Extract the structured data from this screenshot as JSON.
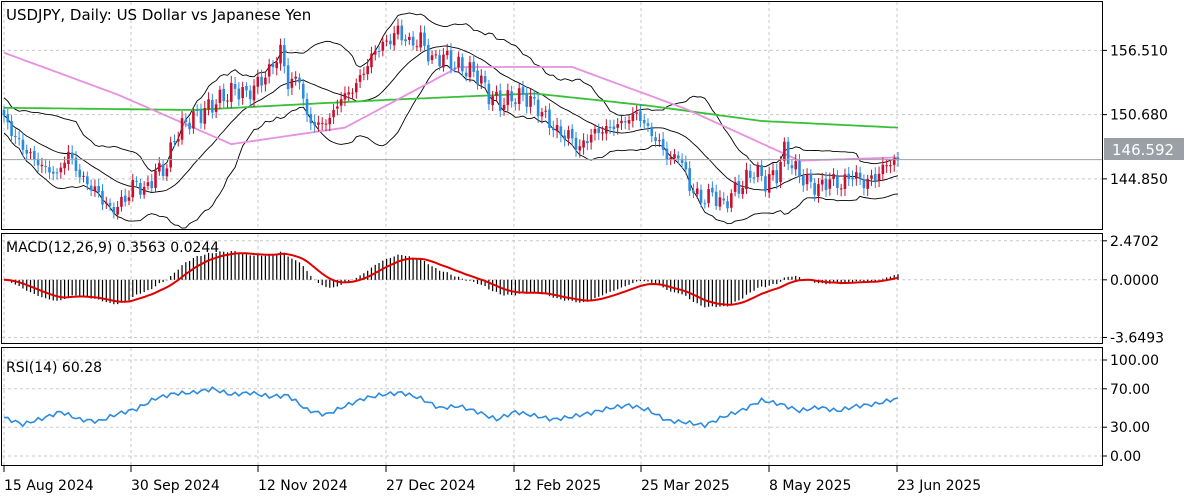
{
  "colors": {
    "frame": "#000000",
    "grid": "#c8c8c8",
    "bull": "#c8102e",
    "bear": "#2a8be0",
    "sma_long": "#38c038",
    "sma_short": "#e890e0",
    "bands": "#000000",
    "macd_signal": "#e00000",
    "macd_hist": "#000000",
    "rsi_line": "#2a8be0",
    "price_label_bg": "#9aa0a6",
    "price_label_text": "#ffffff"
  },
  "main_panel": {
    "title": "USDJPY, Daily:  US Dollar vs Japanese Yen",
    "y_ticks": [
      "156.510",
      "150.680",
      "144.850"
    ],
    "current_price": "146.592"
  },
  "macd_panel": {
    "title": "MACD(12,26,9) 0.3563 0.0244",
    "y_ticks": [
      "2.4702",
      "0.0000",
      "-3.6493"
    ]
  },
  "rsi_panel": {
    "title": "RSI(14) 60.28",
    "y_ticks": [
      "100.00",
      "70.00",
      "30.00",
      "0.00"
    ]
  },
  "x_axis_labels": [
    "15 Aug 2024",
    "30 Sep 2024",
    "12 Nov 2024",
    "27 Dec 2024",
    "12 Feb 2025",
    "25 Mar 2025",
    "8 May 2025",
    "23 Jun 2025"
  ],
  "chart_data": {
    "type": "candlestick",
    "title": "USDJPY, Daily:  US Dollar vs Japanese Yen",
    "x_labels": [
      "15 Aug 2024",
      "30 Sep 2024",
      "12 Nov 2024",
      "27 Dec 2024",
      "12 Feb 2025",
      "25 Mar 2025",
      "8 May 2025",
      "23 Jun 2025"
    ],
    "price_axis": {
      "ticks": [
        156.51,
        150.68,
        144.85
      ],
      "range": [
        140.3,
        160.9
      ],
      "current": 146.592
    },
    "close_path": [
      [
        0,
        150.3
      ],
      [
        3,
        148.6
      ],
      [
        6,
        147.3
      ],
      [
        10,
        146.0
      ],
      [
        14,
        145.2
      ],
      [
        17,
        147.2
      ],
      [
        20,
        145.1
      ],
      [
        25,
        143.5
      ],
      [
        28,
        142.0
      ],
      [
        31,
        142.6
      ],
      [
        35,
        144.6
      ],
      [
        37,
        143.6
      ],
      [
        40,
        145.4
      ],
      [
        43,
        146.0
      ],
      [
        45,
        148.6
      ],
      [
        48,
        150.0
      ],
      [
        52,
        150.8
      ],
      [
        55,
        151.6
      ],
      [
        58,
        152.3
      ],
      [
        61,
        153.0
      ],
      [
        64,
        152.5
      ],
      [
        67,
        153.5
      ],
      [
        70,
        154.6
      ],
      [
        73,
        156.5
      ],
      [
        75,
        153.5
      ],
      [
        78,
        154.0
      ],
      [
        80,
        150.3
      ],
      [
        83,
        149.7
      ],
      [
        86,
        150.3
      ],
      [
        89,
        152.2
      ],
      [
        92,
        152.9
      ],
      [
        95,
        154.6
      ],
      [
        98,
        156.5
      ],
      [
        101,
        157.2
      ],
      [
        104,
        158.3
      ],
      [
        107,
        157.1
      ],
      [
        110,
        157.5
      ],
      [
        113,
        155.6
      ],
      [
        116,
        156.0
      ],
      [
        119,
        155.2
      ],
      [
        122,
        154.8
      ],
      [
        125,
        154.3
      ],
      [
        128,
        152.5
      ],
      [
        131,
        151.7
      ],
      [
        134,
        152.2
      ],
      [
        137,
        152.4
      ],
      [
        140,
        151.7
      ],
      [
        143,
        150.4
      ],
      [
        146,
        149.1
      ],
      [
        149,
        148.8
      ],
      [
        152,
        147.6
      ],
      [
        155,
        148.9
      ],
      [
        158,
        149.3
      ],
      [
        161,
        149.6
      ],
      [
        164,
        150.1
      ],
      [
        167,
        150.8
      ],
      [
        170,
        149.4
      ],
      [
        173,
        148.0
      ],
      [
        176,
        146.5
      ],
      [
        178,
        147.2
      ],
      [
        181,
        144.2
      ],
      [
        184,
        142.9
      ],
      [
        187,
        143.5
      ],
      [
        190,
        142.4
      ],
      [
        192,
        143.5
      ],
      [
        195,
        144.4
      ],
      [
        198,
        145.6
      ],
      [
        201,
        144.6
      ],
      [
        204,
        145.3
      ],
      [
        206,
        147.4
      ],
      [
        209,
        145.6
      ],
      [
        212,
        144.6
      ],
      [
        215,
        144.0
      ],
      [
        218,
        144.8
      ],
      [
        221,
        144.3
      ],
      [
        224,
        145.3
      ],
      [
        227,
        144.5
      ],
      [
        230,
        145.0
      ],
      [
        233,
        146.2
      ],
      [
        236,
        146.592
      ]
    ],
    "sma_long_path": [
      [
        0,
        151.3
      ],
      [
        50,
        151.1
      ],
      [
        100,
        152.0
      ],
      [
        140,
        152.6
      ],
      [
        170,
        151.5
      ],
      [
        200,
        150.1
      ],
      [
        236,
        149.5
      ]
    ],
    "sma_short_path": [
      [
        0,
        156.3
      ],
      [
        30,
        152.5
      ],
      [
        60,
        148.0
      ],
      [
        90,
        149.5
      ],
      [
        120,
        155.0
      ],
      [
        150,
        155.0
      ],
      [
        180,
        151.2
      ],
      [
        210,
        146.5
      ],
      [
        236,
        146.8
      ]
    ],
    "macd": {
      "values": {
        "macd": 0.3563,
        "signal": 0.0244
      },
      "axis": {
        "ticks": [
          2.4702,
          0.0,
          -3.6493
        ],
        "range": [
          -4.0,
          2.9
        ]
      }
    },
    "rsi": {
      "value": 60.28,
      "axis": {
        "ticks": [
          100.0,
          70.0,
          30.0,
          0.0
        ],
        "range": [
          0,
          100
        ]
      },
      "path": [
        [
          0,
          40
        ],
        [
          5,
          33
        ],
        [
          10,
          39
        ],
        [
          15,
          46
        ],
        [
          20,
          38
        ],
        [
          25,
          36
        ],
        [
          30,
          44
        ],
        [
          35,
          49
        ],
        [
          40,
          60
        ],
        [
          45,
          65
        ],
        [
          50,
          66
        ],
        [
          55,
          70
        ],
        [
          60,
          64
        ],
        [
          65,
          66
        ],
        [
          70,
          62
        ],
        [
          75,
          63
        ],
        [
          80,
          48
        ],
        [
          85,
          43
        ],
        [
          90,
          52
        ],
        [
          95,
          60
        ],
        [
          100,
          64
        ],
        [
          105,
          66
        ],
        [
          110,
          60
        ],
        [
          115,
          50
        ],
        [
          120,
          52
        ],
        [
          125,
          46
        ],
        [
          130,
          38
        ],
        [
          135,
          46
        ],
        [
          140,
          42
        ],
        [
          145,
          38
        ],
        [
          150,
          41
        ],
        [
          155,
          45
        ],
        [
          160,
          50
        ],
        [
          165,
          53
        ],
        [
          170,
          48
        ],
        [
          175,
          37
        ],
        [
          180,
          35
        ],
        [
          185,
          32
        ],
        [
          190,
          41
        ],
        [
          195,
          48
        ],
        [
          200,
          58
        ],
        [
          205,
          54
        ],
        [
          210,
          47
        ],
        [
          215,
          51
        ],
        [
          220,
          47
        ],
        [
          225,
          52
        ],
        [
          230,
          54
        ],
        [
          236,
          60.28
        ]
      ]
    }
  }
}
